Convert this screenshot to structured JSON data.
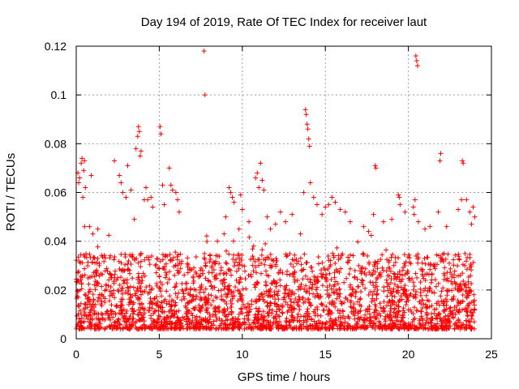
{
  "chart_data": {
    "type": "scatter",
    "title": "Day 194 of 2019, Rate Of TEC Index for receiver laut",
    "xlabel": "GPS time / hours",
    "ylabel": "ROTI / TECUs",
    "xlim": [
      0,
      25
    ],
    "ylim": [
      0,
      0.12
    ],
    "xticks": [
      0,
      5,
      10,
      15,
      20,
      25
    ],
    "yticks": [
      0,
      0.02,
      0.04,
      0.06,
      0.08,
      0.1,
      0.12
    ],
    "ytick_labels": [
      "0",
      "0.02",
      "0.04",
      "0.06",
      "0.08",
      "0.1",
      "0.12"
    ],
    "grid": true,
    "marker": "+",
    "series": [
      {
        "name": "ROTI",
        "color": "#ff0000",
        "points": [
          [
            0.1,
            0.068
          ],
          [
            0.15,
            0.064
          ],
          [
            0.2,
            0.066
          ],
          [
            0.3,
            0.072
          ],
          [
            0.35,
            0.074
          ],
          [
            0.4,
            0.058
          ],
          [
            0.45,
            0.069
          ],
          [
            0.5,
            0.073
          ],
          [
            0.55,
            0.062
          ],
          [
            0.9,
            0.067
          ],
          [
            0.5,
            0.046
          ],
          [
            0.8,
            0.046
          ],
          [
            1.0,
            0.043
          ],
          [
            1.3,
            0.045
          ],
          [
            2.3,
            0.073
          ],
          [
            2.6,
            0.067
          ],
          [
            2.7,
            0.064
          ],
          [
            2.8,
            0.06
          ],
          [
            3.0,
            0.058
          ],
          [
            3.1,
            0.071
          ],
          [
            3.3,
            0.061
          ],
          [
            3.5,
            0.049
          ],
          [
            3.6,
            0.078
          ],
          [
            3.7,
            0.083
          ],
          [
            3.75,
            0.087
          ],
          [
            3.8,
            0.085
          ],
          [
            3.85,
            0.075
          ],
          [
            3.9,
            0.077
          ],
          [
            4.1,
            0.057
          ],
          [
            4.2,
            0.062
          ],
          [
            4.3,
            0.057
          ],
          [
            4.5,
            0.058
          ],
          [
            4.6,
            0.054
          ],
          [
            5.05,
            0.087
          ],
          [
            5.1,
            0.084
          ],
          [
            5.2,
            0.063
          ],
          [
            5.3,
            0.055
          ],
          [
            5.6,
            0.07
          ],
          [
            5.7,
            0.063
          ],
          [
            5.8,
            0.061
          ],
          [
            6.0,
            0.06
          ],
          [
            6.1,
            0.057
          ],
          [
            6.2,
            0.052
          ],
          [
            7.7,
            0.118
          ],
          [
            7.75,
            0.1
          ],
          [
            8.5,
            0.04
          ],
          [
            8.9,
            0.043
          ],
          [
            9.0,
            0.05
          ],
          [
            9.2,
            0.062
          ],
          [
            9.3,
            0.06
          ],
          [
            9.4,
            0.058
          ],
          [
            9.5,
            0.056
          ],
          [
            9.8,
            0.045
          ],
          [
            9.9,
            0.059
          ],
          [
            10.0,
            0.053
          ],
          [
            10.4,
            0.048
          ],
          [
            10.8,
            0.066
          ],
          [
            10.9,
            0.068
          ],
          [
            11.0,
            0.062
          ],
          [
            11.1,
            0.072
          ],
          [
            11.2,
            0.065
          ],
          [
            11.3,
            0.061
          ],
          [
            11.5,
            0.05
          ],
          [
            11.7,
            0.045
          ],
          [
            12.0,
            0.047
          ],
          [
            12.3,
            0.052
          ],
          [
            12.6,
            0.048
          ],
          [
            13.0,
            0.051
          ],
          [
            13.5,
            0.043
          ],
          [
            13.7,
            0.06
          ],
          [
            13.8,
            0.094
          ],
          [
            13.85,
            0.092
          ],
          [
            13.9,
            0.088
          ],
          [
            13.95,
            0.086
          ],
          [
            14.0,
            0.082
          ],
          [
            14.05,
            0.079
          ],
          [
            14.1,
            0.064
          ],
          [
            14.3,
            0.058
          ],
          [
            14.5,
            0.055
          ],
          [
            14.8,
            0.051
          ],
          [
            15.0,
            0.054
          ],
          [
            15.2,
            0.055
          ],
          [
            15.4,
            0.058
          ],
          [
            15.6,
            0.056
          ],
          [
            15.9,
            0.053
          ],
          [
            16.2,
            0.052
          ],
          [
            16.5,
            0.048
          ],
          [
            17.3,
            0.046
          ],
          [
            17.6,
            0.044
          ],
          [
            17.9,
            0.051
          ],
          [
            18.0,
            0.071
          ],
          [
            18.05,
            0.07
          ],
          [
            18.5,
            0.048
          ],
          [
            19.0,
            0.049
          ],
          [
            19.4,
            0.059
          ],
          [
            19.45,
            0.058
          ],
          [
            19.5,
            0.055
          ],
          [
            19.8,
            0.052
          ],
          [
            20.3,
            0.054
          ],
          [
            20.35,
            0.051
          ],
          [
            20.4,
            0.057
          ],
          [
            20.45,
            0.116
          ],
          [
            20.5,
            0.114
          ],
          [
            20.55,
            0.112
          ],
          [
            20.6,
            0.048
          ],
          [
            21.0,
            0.045
          ],
          [
            21.3,
            0.046
          ],
          [
            21.8,
            0.052
          ],
          [
            21.9,
            0.073
          ],
          [
            21.95,
            0.076
          ],
          [
            22.3,
            0.046
          ],
          [
            23.0,
            0.053
          ],
          [
            23.2,
            0.057
          ],
          [
            23.25,
            0.073
          ],
          [
            23.3,
            0.072
          ],
          [
            23.5,
            0.057
          ],
          [
            23.7,
            0.052
          ],
          [
            23.8,
            0.047
          ],
          [
            23.9,
            0.054
          ],
          [
            24.0,
            0.05
          ]
        ],
        "dense_band": {
          "x_range": [
            0,
            24
          ],
          "y_range_typical": [
            0.004,
            0.035
          ],
          "note": "dense continuous cluster of points"
        }
      }
    ]
  }
}
